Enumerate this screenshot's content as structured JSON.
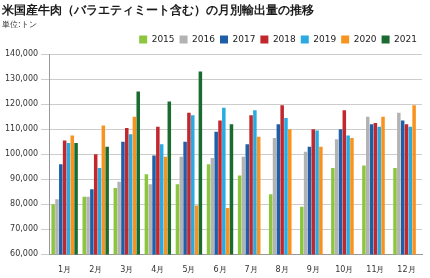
{
  "chart_data": {
    "type": "bar",
    "title": "米国産牛肉（バラエティミート含む）の月別輸出量の推移",
    "subtitle": "単位:トン",
    "categories": [
      "1月",
      "2月",
      "3月",
      "4月",
      "5月",
      "6月",
      "7月",
      "8月",
      "9月",
      "10月",
      "11月",
      "12月"
    ],
    "series": [
      {
        "name": "2015",
        "color": "#8cc63f",
        "values": [
          80000,
          83000,
          86500,
          92000,
          88000,
          96000,
          91500,
          84000,
          79000,
          94500,
          95500,
          94500
        ]
      },
      {
        "name": "2016",
        "color": "#b3b3b3",
        "values": [
          82000,
          83000,
          89000,
          88000,
          99000,
          98500,
          99000,
          106500,
          101000,
          106000,
          115000,
          116500
        ]
      },
      {
        "name": "2017",
        "color": "#1f5fa8",
        "values": [
          96000,
          86000,
          105000,
          99500,
          105000,
          109000,
          104000,
          112000,
          103000,
          110000,
          112000,
          113500
        ]
      },
      {
        "name": "2018",
        "color": "#c1272d",
        "values": [
          105500,
          100000,
          110500,
          111000,
          116500,
          113500,
          115500,
          119500,
          110000,
          117500,
          112500,
          112000
        ]
      },
      {
        "name": "2019",
        "color": "#29abe2",
        "values": [
          104500,
          94500,
          108000,
          104000,
          115500,
          118500,
          117500,
          114500,
          109500,
          107500,
          111000,
          111000
        ]
      },
      {
        "name": "2020",
        "color": "#f7931e",
        "values": [
          107500,
          111500,
          115000,
          99000,
          79500,
          78500,
          107000,
          110000,
          103000,
          106500,
          115000,
          119500
        ]
      },
      {
        "name": "2021",
        "color": "#1a6b30",
        "values": [
          104500,
          103000,
          125000,
          121000,
          133000,
          112000,
          null,
          null,
          null,
          null,
          null,
          null
        ]
      }
    ],
    "ylim": [
      60000,
      140000
    ],
    "yticks": [
      {
        "value": 60000,
        "label": "60,000"
      },
      {
        "value": 70000,
        "label": "70,000"
      },
      {
        "value": 80000,
        "label": "80,000"
      },
      {
        "value": 90000,
        "label": "90,000"
      },
      {
        "value": 100000,
        "label": "100,000"
      },
      {
        "value": 110000,
        "label": "110,000"
      },
      {
        "value": 120000,
        "label": "120,000"
      },
      {
        "value": 130000,
        "label": "130,000"
      },
      {
        "value": 140000,
        "label": "140,000"
      }
    ],
    "grid": true,
    "legend": "top"
  }
}
